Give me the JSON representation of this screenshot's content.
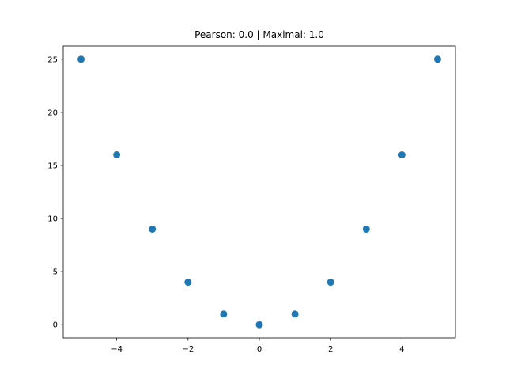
{
  "chart_data": {
    "type": "scatter",
    "title": "Pearson: 0.0 | Maximal: 1.0",
    "xlabel": "",
    "ylabel": "",
    "xlim": [
      -5.5,
      5.5
    ],
    "ylim": [
      -1.25,
      26.25
    ],
    "xticks": [
      -4,
      -2,
      0,
      2,
      4
    ],
    "xtick_labels": [
      "−4",
      "−2",
      "0",
      "2",
      "4"
    ],
    "yticks": [
      0,
      5,
      10,
      15,
      20,
      25
    ],
    "ytick_labels": [
      "0",
      "5",
      "10",
      "15",
      "20",
      "25"
    ],
    "grid": false,
    "legend": "none",
    "marker_color": "#1f77b4",
    "series": [
      {
        "x": [
          -5,
          -4,
          -3,
          -2,
          -1,
          0,
          1,
          2,
          3,
          4,
          5
        ],
        "y": [
          25,
          16,
          9,
          4,
          1,
          0,
          1,
          4,
          9,
          16,
          25
        ]
      }
    ]
  }
}
